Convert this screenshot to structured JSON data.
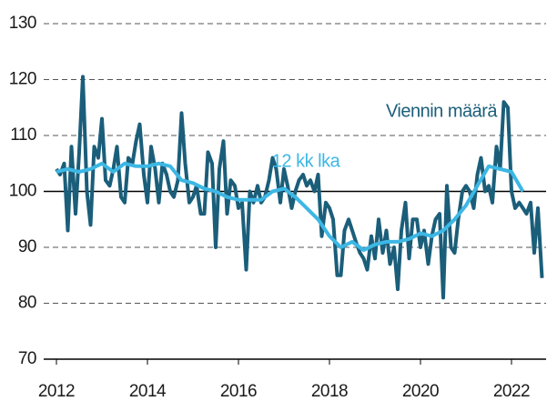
{
  "chart_data": {
    "type": "line",
    "xlim": [
      2011.72,
      2022.76
    ],
    "xticks": [
      2012,
      2014,
      2016,
      2018,
      2020,
      2022
    ],
    "ylim": [
      70,
      130
    ],
    "yticks": [
      70,
      80,
      90,
      100,
      110,
      120,
      130
    ],
    "grid": true,
    "reference_line": 100,
    "series": [
      {
        "name": "Viennin määrä",
        "color": "#1b5e7a",
        "x": [
          2012,
          2012.08,
          2012.17,
          2012.25,
          2012.33,
          2012.42,
          2012.5,
          2012.58,
          2012.67,
          2012.75,
          2012.83,
          2012.92,
          2013,
          2013.08,
          2013.17,
          2013.25,
          2013.33,
          2013.42,
          2013.5,
          2013.58,
          2013.67,
          2013.75,
          2013.83,
          2013.92,
          2014,
          2014.08,
          2014.17,
          2014.25,
          2014.33,
          2014.42,
          2014.5,
          2014.58,
          2014.67,
          2014.75,
          2014.83,
          2014.92,
          2015,
          2015.08,
          2015.17,
          2015.25,
          2015.33,
          2015.42,
          2015.5,
          2015.58,
          2015.67,
          2015.75,
          2015.83,
          2015.92,
          2016,
          2016.08,
          2016.17,
          2016.25,
          2016.33,
          2016.42,
          2016.5,
          2016.58,
          2016.67,
          2016.75,
          2016.83,
          2016.92,
          2017,
          2017.08,
          2017.17,
          2017.25,
          2017.33,
          2017.42,
          2017.5,
          2017.58,
          2017.67,
          2017.75,
          2017.83,
          2017.92,
          2018,
          2018.08,
          2018.17,
          2018.25,
          2018.33,
          2018.42,
          2018.5,
          2018.58,
          2018.67,
          2018.75,
          2018.83,
          2018.92,
          2019,
          2019.08,
          2019.17,
          2019.25,
          2019.33,
          2019.42,
          2019.5,
          2019.58,
          2019.67,
          2019.75,
          2019.83,
          2019.92,
          2020,
          2020.08,
          2020.17,
          2020.25,
          2020.33,
          2020.42,
          2020.5,
          2020.58,
          2020.67,
          2020.75,
          2020.83,
          2020.92,
          2021,
          2021.08,
          2021.17,
          2021.25,
          2021.33,
          2021.42,
          2021.5,
          2021.58,
          2021.67,
          2021.75,
          2021.83,
          2021.92,
          2022,
          2022.08,
          2022.17,
          2022.25,
          2022.33,
          2022.42,
          2022.5,
          2022.58,
          2022.67
        ],
        "values": [
          104,
          103,
          105,
          93,
          108,
          96,
          107,
          120.5,
          100,
          94,
          108,
          106,
          113,
          102,
          101,
          104,
          108,
          99,
          98,
          106,
          105,
          109,
          112,
          103,
          98,
          108,
          104,
          98,
          105,
          103,
          100,
          99,
          102,
          114,
          105,
          98,
          99,
          101,
          96,
          96,
          107,
          105,
          90,
          104,
          109,
          96,
          102,
          101,
          97,
          98,
          86,
          100,
          98,
          101,
          98,
          99,
          102,
          106,
          104,
          98,
          104,
          101,
          97,
          100,
          102,
          103,
          101,
          102,
          100,
          103,
          92,
          98,
          97,
          95,
          85,
          85,
          93,
          95,
          93,
          91,
          89,
          88,
          86,
          92,
          88,
          95,
          89,
          93,
          87,
          90,
          82.5,
          93,
          98,
          88,
          95,
          95,
          90,
          93,
          87,
          92,
          95,
          96,
          81,
          101,
          90,
          89,
          95,
          100,
          101,
          100,
          97,
          103,
          106,
          100,
          101,
          98,
          108,
          104,
          116,
          115,
          100,
          97,
          98,
          97,
          96,
          98,
          89,
          97,
          84.5
        ]
      },
      {
        "name": "12 kk lka",
        "color": "#3db7e4",
        "x": [
          2012,
          2012.25,
          2012.5,
          2012.75,
          2013,
          2013.25,
          2013.5,
          2013.75,
          2014,
          2014.25,
          2014.5,
          2014.75,
          2015,
          2015.25,
          2015.5,
          2015.75,
          2016,
          2016.25,
          2016.5,
          2016.75,
          2017,
          2017.25,
          2017.5,
          2017.75,
          2018,
          2018.25,
          2018.5,
          2018.75,
          2019,
          2019.25,
          2019.5,
          2019.75,
          2020,
          2020.25,
          2020.5,
          2020.75,
          2021,
          2021.25,
          2021.5,
          2021.75,
          2022,
          2022.25
        ],
        "values": [
          103.5,
          104,
          103.5,
          104,
          105,
          103.5,
          105,
          104.5,
          104.5,
          105,
          104.5,
          102,
          101.5,
          100.5,
          100,
          99,
          98.5,
          98.5,
          98.5,
          100,
          100.5,
          99,
          97,
          95,
          92,
          90,
          91,
          89.5,
          90.5,
          91,
          91,
          91.5,
          92.5,
          92,
          93,
          95,
          97.5,
          101,
          104.5,
          104,
          103.5,
          100
        ]
      }
    ]
  }
}
